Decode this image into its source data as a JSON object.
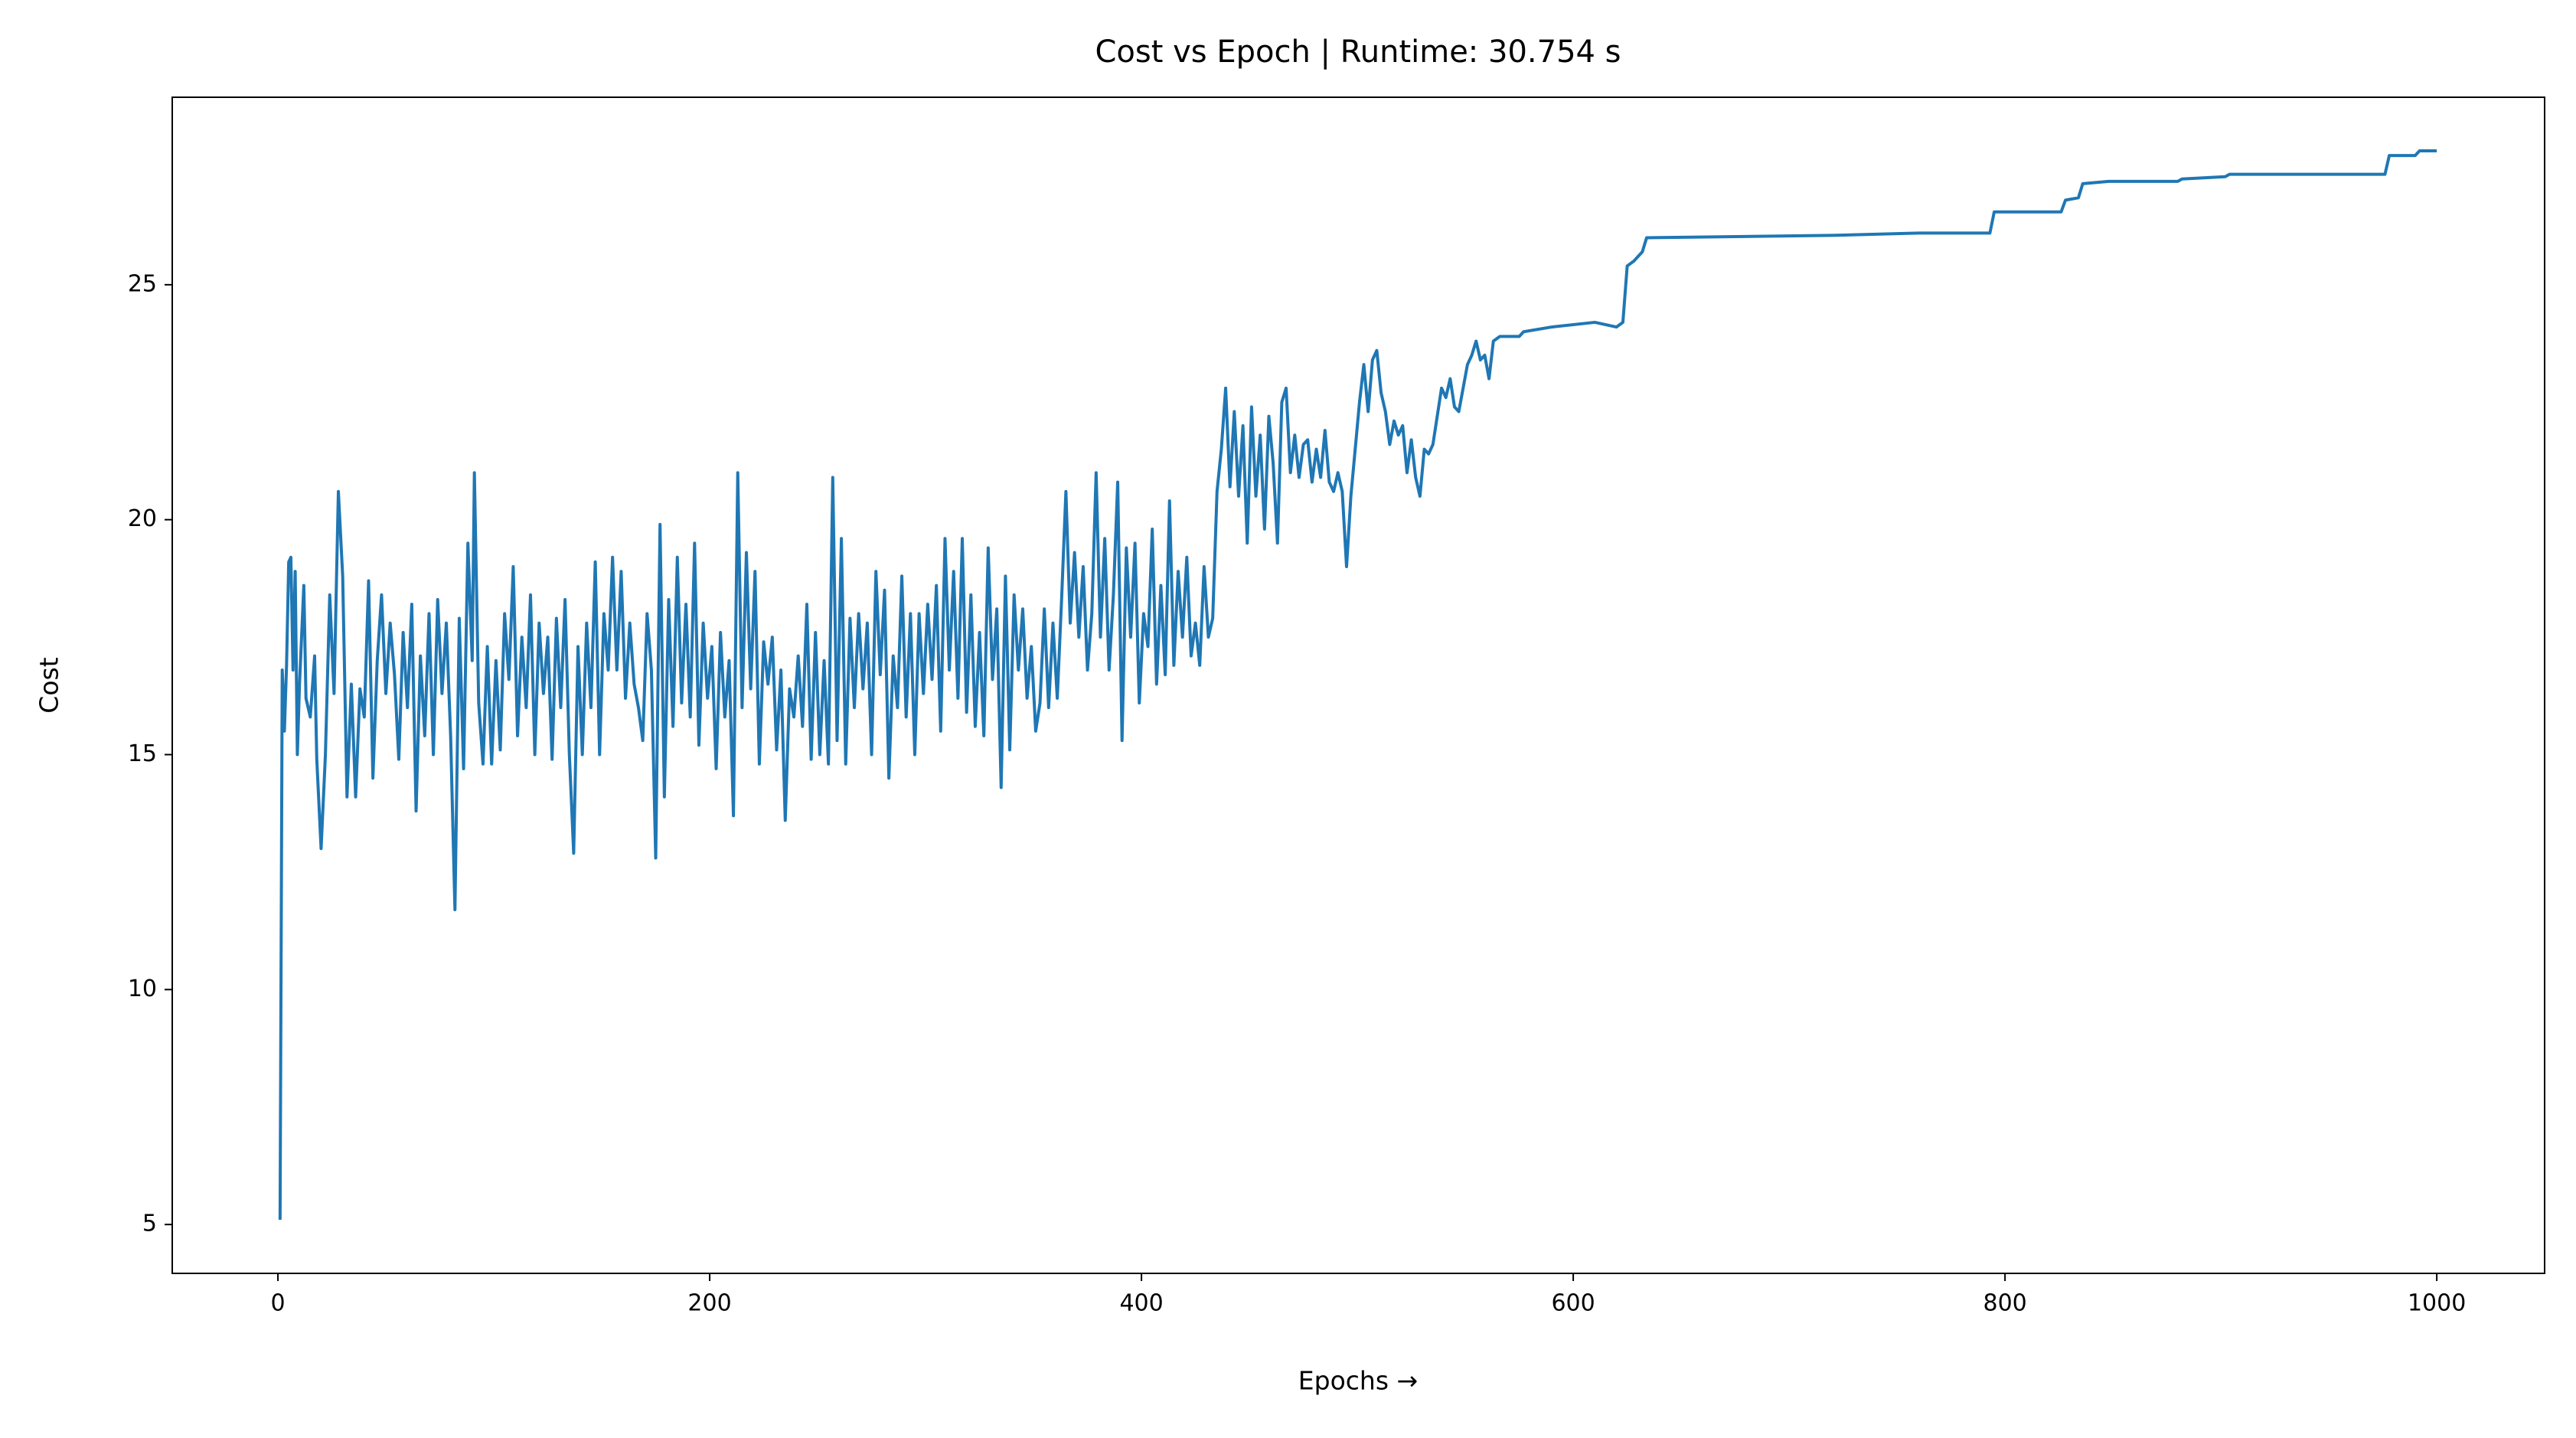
{
  "chart_data": {
    "type": "line",
    "title": "Cost vs Epoch | Runtime: 30.754 s",
    "xlabel": "Epochs →",
    "ylabel": "Cost",
    "color": "#1f77b4",
    "x": [
      1,
      2,
      3,
      4,
      5,
      6,
      7,
      8,
      9,
      10,
      12,
      13,
      15,
      17,
      18,
      20,
      22,
      24,
      26,
      28,
      30,
      32,
      34,
      36,
      38,
      40,
      42,
      44,
      46,
      48,
      50,
      52,
      54,
      56,
      58,
      60,
      62,
      64,
      66,
      68,
      70,
      72,
      74,
      76,
      78,
      80,
      82,
      84,
      86,
      88,
      90,
      91,
      93,
      95,
      97,
      99,
      101,
      103,
      105,
      107,
      109,
      111,
      113,
      115,
      117,
      119,
      121,
      123,
      125,
      127,
      129,
      131,
      133,
      135,
      137,
      139,
      141,
      143,
      145,
      147,
      149,
      151,
      153,
      155,
      157,
      159,
      161,
      163,
      165,
      167,
      169,
      171,
      173,
      175,
      177,
      179,
      181,
      183,
      185,
      187,
      189,
      191,
      193,
      195,
      197,
      199,
      201,
      203,
      205,
      207,
      209,
      211,
      213,
      215,
      217,
      219,
      221,
      223,
      225,
      227,
      229,
      231,
      233,
      235,
      237,
      239,
      241,
      243,
      245,
      247,
      249,
      251,
      253,
      255,
      257,
      259,
      261,
      263,
      265,
      267,
      269,
      271,
      273,
      275,
      277,
      279,
      281,
      283,
      285,
      287,
      289,
      291,
      293,
      295,
      297,
      299,
      301,
      303,
      305,
      307,
      309,
      311,
      313,
      315,
      317,
      319,
      321,
      323,
      325,
      327,
      329,
      331,
      333,
      335,
      337,
      339,
      341,
      343,
      345,
      347,
      349,
      351,
      353,
      355,
      357,
      359,
      361,
      363,
      365,
      367,
      369,
      371,
      373,
      375,
      377,
      379,
      381,
      383,
      385,
      387,
      389,
      391,
      393,
      395,
      397,
      399,
      401,
      403,
      405,
      407,
      409,
      411,
      413,
      415,
      417,
      419,
      421,
      423,
      425,
      427,
      429,
      431,
      433,
      435,
      437,
      439,
      441,
      443,
      445,
      447,
      449,
      451,
      453,
      455,
      457,
      459,
      461,
      463,
      465,
      467,
      469,
      471,
      473,
      475,
      477,
      479,
      481,
      483,
      485,
      487,
      489,
      491,
      493,
      495,
      497,
      499,
      501,
      503,
      505,
      507,
      509,
      511,
      513,
      515,
      517,
      519,
      521,
      523,
      525,
      527,
      529,
      531,
      533,
      535,
      537,
      539,
      541,
      543,
      545,
      547,
      549,
      551,
      553,
      555,
      557,
      559,
      561,
      563,
      566,
      575,
      577,
      590,
      610,
      620,
      623,
      625,
      628,
      632,
      634,
      720,
      760,
      793,
      795,
      826,
      828,
      834,
      836,
      848,
      880,
      882,
      902,
      904,
      976,
      978,
      990,
      992,
      1000
    ],
    "values": [
      5.1,
      16.8,
      15.5,
      16.9,
      19.1,
      19.2,
      16.8,
      18.9,
      15.0,
      16.5,
      18.6,
      16.2,
      15.8,
      17.1,
      14.9,
      13.0,
      15.0,
      18.4,
      16.3,
      20.6,
      18.8,
      14.1,
      16.5,
      14.1,
      16.4,
      15.8,
      18.7,
      14.5,
      17.0,
      18.4,
      16.3,
      17.8,
      16.7,
      14.9,
      17.6,
      16.0,
      18.2,
      13.8,
      17.1,
      15.4,
      18.0,
      15.0,
      18.3,
      16.3,
      17.8,
      15.4,
      11.7,
      17.9,
      14.7,
      19.5,
      17.0,
      21.0,
      16.1,
      14.8,
      17.3,
      14.8,
      17.0,
      15.1,
      18.0,
      16.6,
      19.0,
      15.4,
      17.5,
      16.0,
      18.4,
      15.0,
      17.8,
      16.3,
      17.5,
      14.9,
      17.9,
      16.0,
      18.3,
      15.0,
      12.9,
      17.3,
      15.0,
      17.8,
      16.0,
      19.1,
      15.0,
      18.0,
      16.8,
      19.2,
      16.8,
      18.9,
      16.2,
      17.8,
      16.5,
      16.0,
      15.3,
      18.0,
      16.8,
      12.8,
      19.9,
      14.1,
      18.3,
      15.6,
      19.2,
      16.1,
      18.2,
      15.8,
      19.5,
      15.2,
      17.8,
      16.2,
      17.3,
      14.7,
      17.6,
      15.8,
      17.0,
      13.7,
      21.0,
      16.0,
      19.3,
      16.4,
      18.9,
      14.8,
      17.4,
      16.5,
      17.5,
      15.1,
      16.8,
      13.6,
      16.4,
      15.8,
      17.1,
      15.6,
      18.2,
      14.9,
      17.6,
      15.0,
      17.0,
      14.8,
      20.9,
      15.3,
      19.6,
      14.8,
      17.9,
      16.0,
      18.0,
      16.4,
      17.8,
      15.0,
      18.9,
      16.7,
      18.5,
      14.5,
      17.1,
      16.0,
      18.8,
      15.8,
      18.0,
      15.0,
      18.0,
      16.3,
      18.2,
      16.6,
      18.6,
      15.5,
      19.6,
      16.8,
      18.9,
      16.2,
      19.6,
      15.9,
      18.4,
      15.6,
      17.6,
      15.4,
      19.4,
      16.6,
      18.1,
      14.3,
      18.8,
      15.1,
      18.4,
      16.8,
      18.1,
      16.2,
      17.3,
      15.5,
      16.1,
      18.1,
      16.0,
      17.8,
      16.2,
      18.3,
      20.6,
      17.8,
      19.3,
      17.5,
      19.0,
      16.8,
      18.0,
      21.0,
      17.5,
      19.6,
      16.8,
      18.4,
      20.8,
      15.3,
      19.4,
      17.5,
      19.5,
      16.1,
      18.0,
      17.3,
      19.8,
      16.5,
      18.6,
      16.7,
      20.4,
      16.9,
      18.9,
      17.5,
      19.2,
      17.1,
      17.8,
      16.9,
      19.0,
      17.5,
      17.9,
      20.6,
      21.5,
      22.8,
      20.7,
      22.3,
      20.5,
      22.0,
      19.5,
      22.4,
      20.5,
      21.8,
      19.8,
      22.2,
      21.2,
      19.5,
      22.5,
      22.8,
      21.0,
      21.8,
      20.9,
      21.6,
      21.7,
      20.8,
      21.5,
      20.9,
      21.9,
      20.8,
      20.6,
      21.0,
      20.6,
      19.0,
      20.5,
      21.5,
      22.5,
      23.3,
      22.3,
      23.4,
      23.6,
      22.7,
      22.3,
      21.6,
      22.1,
      21.8,
      22.0,
      21.0,
      21.7,
      20.9,
      20.5,
      21.5,
      21.4,
      21.6,
      22.2,
      22.8,
      22.6,
      23.0,
      22.4,
      22.3,
      22.8,
      23.3,
      23.5,
      23.8,
      23.4,
      23.5,
      23.0,
      23.8,
      23.9,
      23.9,
      24.0,
      24.1,
      24.2,
      24.1,
      24.2,
      25.4,
      25.5,
      25.7,
      26.0,
      26.05,
      26.1,
      26.1,
      26.55,
      26.55,
      26.8,
      26.85,
      27.15,
      27.2,
      27.2,
      27.25,
      27.3,
      27.35,
      27.35,
      27.75,
      27.75,
      27.85,
      27.85
    ],
    "xlim": [
      -48.95,
      1049.95
    ],
    "ylim": [
      3.96,
      28.99
    ],
    "xticks": [
      0,
      200,
      400,
      600,
      800,
      1000
    ],
    "yticks": [
      5,
      10,
      15,
      20,
      25
    ]
  }
}
